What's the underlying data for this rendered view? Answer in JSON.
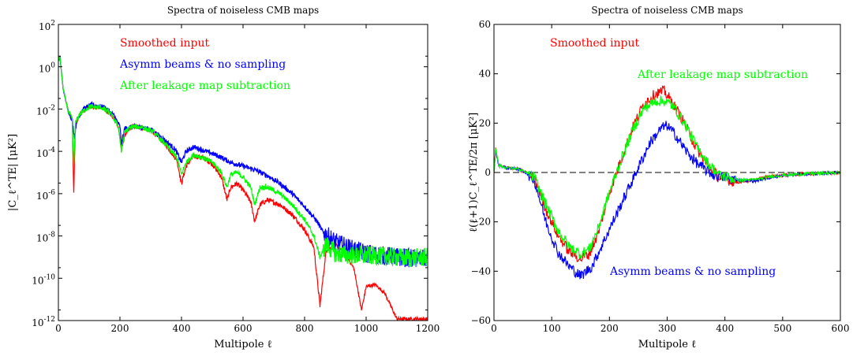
{
  "chart_data": [
    {
      "type": "line",
      "title": "Spectra of noiseless CMB maps",
      "xlabel": "Multipole ℓ",
      "ylabel": "|C_ℓ^TE| [μK²]",
      "xlim": [
        0,
        1200
      ],
      "ylim": [
        1e-12,
        100
      ],
      "yscale": "log",
      "x_ticks": [
        "0",
        "200",
        "400",
        "600",
        "800",
        "1000",
        "1200"
      ],
      "y_ticks": [
        "10^-12",
        "10^-10",
        "10^-8",
        "10^-6",
        "10^-4",
        "10^-2",
        "10^0",
        "10^2"
      ],
      "grid": false,
      "legend_position": "top-left (as colored text labels)",
      "series": [
        {
          "name": "Smoothed input",
          "color": "#ff0000",
          "points": [
            [
              0,
              2
            ],
            [
              5,
              3
            ],
            [
              15,
              0.1
            ],
            [
              30,
              0.01
            ],
            [
              45,
              0.003
            ],
            [
              50,
              1e-06
            ],
            [
              55,
              0.002
            ],
            [
              70,
              0.006
            ],
            [
              100,
              0.013
            ],
            [
              140,
              0.012
            ],
            [
              170,
              0.006
            ],
            [
              195,
              0.0015
            ],
            [
              205,
              0.0001
            ],
            [
              215,
              0.0006
            ],
            [
              240,
              0.0015
            ],
            [
              270,
              0.0014
            ],
            [
              310,
              0.0008
            ],
            [
              350,
              0.0002
            ],
            [
              385,
              4e-05
            ],
            [
              400,
              3e-06
            ],
            [
              415,
              2e-05
            ],
            [
              440,
              6e-05
            ],
            [
              470,
              5e-05
            ],
            [
              500,
              2.5e-05
            ],
            [
              530,
              6e-06
            ],
            [
              548,
              5e-07
            ],
            [
              560,
              2e-06
            ],
            [
              580,
              3e-06
            ],
            [
              600,
              1.5e-06
            ],
            [
              625,
              4e-07
            ],
            [
              638,
              5e-08
            ],
            [
              655,
              3e-07
            ],
            [
              680,
              5e-07
            ],
            [
              720,
              3e-07
            ],
            [
              760,
              1e-07
            ],
            [
              800,
              2e-08
            ],
            [
              830,
              3e-09
            ],
            [
              850,
              5e-12
            ],
            [
              870,
              2e-09
            ],
            [
              900,
              4e-09
            ],
            [
              930,
              1.5e-09
            ],
            [
              960,
              3e-10
            ],
            [
              975,
              2e-11
            ],
            [
              985,
              3e-12
            ],
            [
              1000,
              4e-11
            ],
            [
              1030,
              5e-11
            ],
            [
              1060,
              2e-11
            ],
            [
              1100,
              1.2e-12
            ]
          ]
        },
        {
          "name": "Asymm beams & no sampling",
          "color": "#0000ff",
          "points": [
            [
              0,
              2
            ],
            [
              5,
              3
            ],
            [
              15,
              0.1
            ],
            [
              30,
              0.01
            ],
            [
              45,
              0.003
            ],
            [
              52,
              0.0005
            ],
            [
              60,
              0.003
            ],
            [
              80,
              0.01
            ],
            [
              110,
              0.016
            ],
            [
              150,
              0.012
            ],
            [
              180,
              0.005
            ],
            [
              200,
              0.0015
            ],
            [
              205,
              0.0002
            ],
            [
              215,
              0.0012
            ],
            [
              250,
              0.0015
            ],
            [
              300,
              0.0011
            ],
            [
              340,
              0.0004
            ],
            [
              380,
              0.00012
            ],
            [
              400,
              3e-05
            ],
            [
              415,
              0.0001
            ],
            [
              440,
              0.00016
            ],
            [
              480,
              0.0001
            ],
            [
              520,
              6e-05
            ],
            [
              560,
              3e-05
            ],
            [
              600,
              2e-05
            ],
            [
              640,
              1.3e-05
            ],
            [
              680,
              7e-06
            ],
            [
              720,
              3e-06
            ],
            [
              760,
              1e-06
            ],
            [
              800,
              2.5e-07
            ],
            [
              840,
              5e-08
            ],
            [
              860,
              1.5e-08
            ],
            [
              900,
              5e-09
            ],
            [
              950,
              2.5e-09
            ],
            [
              1000,
              1.5e-09
            ],
            [
              1050,
              1.2e-09
            ],
            [
              1100,
              1e-09
            ],
            [
              1150,
              9e-10
            ],
            [
              1180,
              8e-10
            ],
            [
              1195,
              9e-10
            ]
          ]
        },
        {
          "name": "After leakage map subtraction",
          "color": "#00ff00",
          "points": [
            [
              0,
              2
            ],
            [
              5,
              3
            ],
            [
              15,
              0.1
            ],
            [
              30,
              0.01
            ],
            [
              45,
              0.003
            ],
            [
              50,
              2e-05
            ],
            [
              55,
              0.002
            ],
            [
              70,
              0.006
            ],
            [
              100,
              0.013
            ],
            [
              140,
              0.012
            ],
            [
              170,
              0.006
            ],
            [
              195,
              0.0015
            ],
            [
              205,
              0.0001
            ],
            [
              215,
              0.0008
            ],
            [
              240,
              0.0015
            ],
            [
              270,
              0.0014
            ],
            [
              310,
              0.0008
            ],
            [
              350,
              0.0002
            ],
            [
              385,
              5e-05
            ],
            [
              400,
              8e-06
            ],
            [
              415,
              3e-05
            ],
            [
              440,
              7e-05
            ],
            [
              470,
              5e-05
            ],
            [
              500,
              3e-05
            ],
            [
              530,
              1e-05
            ],
            [
              548,
              2e-06
            ],
            [
              560,
              8e-06
            ],
            [
              580,
              1e-05
            ],
            [
              600,
              6e-06
            ],
            [
              625,
              2e-06
            ],
            [
              638,
              3e-07
            ],
            [
              655,
              2e-06
            ],
            [
              680,
              2e-06
            ],
            [
              720,
              1e-06
            ],
            [
              760,
              3e-07
            ],
            [
              800,
              6e-08
            ],
            [
              830,
              1e-08
            ],
            [
              850,
              1e-09
            ],
            [
              870,
              4e-09
            ],
            [
              900,
              1.5e-09
            ],
            [
              950,
              1.2e-09
            ],
            [
              1000,
              1.2e-09
            ],
            [
              1050,
              1.1e-09
            ],
            [
              1100,
              1e-09
            ],
            [
              1150,
              9e-10
            ],
            [
              1200,
              1e-09
            ]
          ]
        }
      ]
    },
    {
      "type": "line",
      "title": "Spectra of noiseless CMB maps",
      "xlabel": "Multipole ℓ",
      "ylabel": "ℓ(ℓ+1)C_ℓ^TE/2π [μK²]",
      "xlim": [
        0,
        600
      ],
      "ylim": [
        -60,
        60
      ],
      "x_ticks": [
        "0",
        "100",
        "200",
        "300",
        "400",
        "500",
        "600"
      ],
      "y_ticks": [
        "−60",
        "−40",
        "−20",
        "0",
        "20",
        "40",
        "60"
      ],
      "grid": false,
      "zero_line": "dashed",
      "legend_position": "annotated text labels (top-center and bottom-center)",
      "series": [
        {
          "name": "Smoothed input",
          "color": "#ff0000",
          "points": [
            [
              0,
              0
            ],
            [
              3,
              10
            ],
            [
              8,
              3
            ],
            [
              20,
              2
            ],
            [
              40,
              1.5
            ],
            [
              55,
              0
            ],
            [
              70,
              -2
            ],
            [
              90,
              -15
            ],
            [
              110,
              -25
            ],
            [
              130,
              -32
            ],
            [
              150,
              -35
            ],
            [
              165,
              -33
            ],
            [
              180,
              -25
            ],
            [
              200,
              -8
            ],
            [
              220,
              5
            ],
            [
              240,
              18
            ],
            [
              260,
              28
            ],
            [
              280,
              32
            ],
            [
              295,
              33
            ],
            [
              310,
              28
            ],
            [
              330,
              20
            ],
            [
              350,
              10
            ],
            [
              370,
              3
            ],
            [
              390,
              -2
            ],
            [
              420,
              -4
            ],
            [
              450,
              -3
            ],
            [
              480,
              -1.5
            ],
            [
              510,
              -1
            ],
            [
              550,
              -0.5
            ],
            [
              600,
              0
            ]
          ]
        },
        {
          "name": "Asymm beams & no sampling",
          "color": "#0000ff",
          "points": [
            [
              0,
              0
            ],
            [
              3,
              9
            ],
            [
              8,
              3
            ],
            [
              20,
              2
            ],
            [
              40,
              1.5
            ],
            [
              55,
              0
            ],
            [
              70,
              -3
            ],
            [
              90,
              -20
            ],
            [
              110,
              -32
            ],
            [
              130,
              -38
            ],
            [
              150,
              -42
            ],
            [
              170,
              -38
            ],
            [
              190,
              -28
            ],
            [
              210,
              -18
            ],
            [
              230,
              -8
            ],
            [
              250,
              2
            ],
            [
              270,
              12
            ],
            [
              290,
              18
            ],
            [
              300,
              19
            ],
            [
              315,
              15
            ],
            [
              335,
              8
            ],
            [
              355,
              3
            ],
            [
              380,
              -1
            ],
            [
              400,
              -2
            ],
            [
              420,
              -3
            ],
            [
              450,
              -3.5
            ],
            [
              480,
              -2
            ],
            [
              510,
              -1
            ],
            [
              550,
              -0.5
            ],
            [
              600,
              0
            ]
          ]
        },
        {
          "name": "After leakage map subtraction",
          "color": "#00ff00",
          "points": [
            [
              0,
              0
            ],
            [
              3,
              10
            ],
            [
              8,
              3
            ],
            [
              20,
              2
            ],
            [
              40,
              1.5
            ],
            [
              55,
              0
            ],
            [
              70,
              -2
            ],
            [
              90,
              -13
            ],
            [
              110,
              -23
            ],
            [
              130,
              -30
            ],
            [
              150,
              -33
            ],
            [
              165,
              -31
            ],
            [
              180,
              -23
            ],
            [
              200,
              -8
            ],
            [
              220,
              5
            ],
            [
              240,
              17
            ],
            [
              260,
              26
            ],
            [
              280,
              29
            ],
            [
              295,
              29
            ],
            [
              310,
              27
            ],
            [
              330,
              20
            ],
            [
              350,
              11
            ],
            [
              370,
              4
            ],
            [
              390,
              -1
            ],
            [
              420,
              -3
            ],
            [
              450,
              -3
            ],
            [
              480,
              -1.5
            ],
            [
              510,
              -1
            ],
            [
              550,
              -0.5
            ],
            [
              600,
              0
            ]
          ]
        }
      ]
    }
  ]
}
